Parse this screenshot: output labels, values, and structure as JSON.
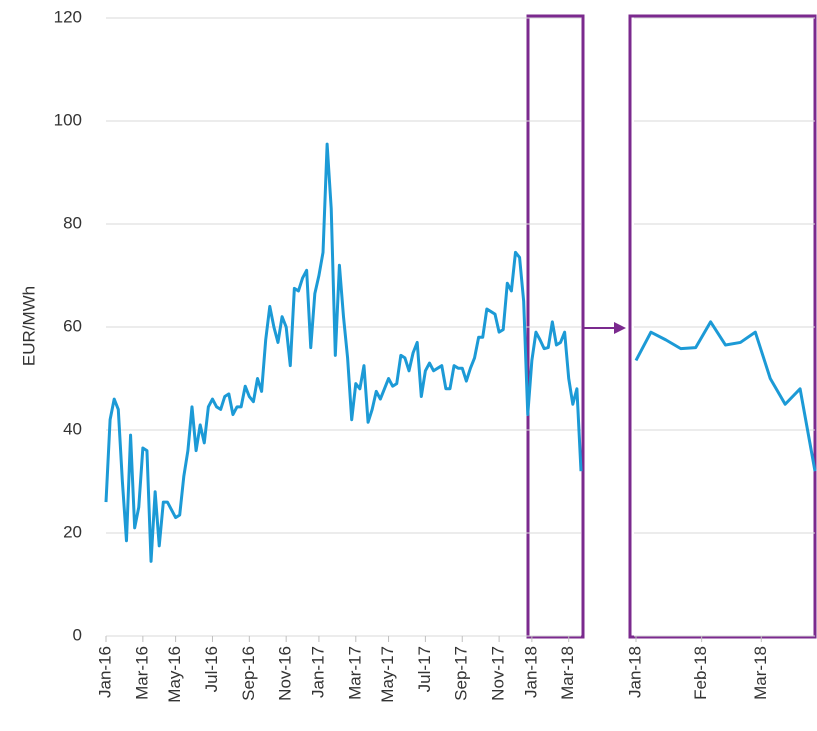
{
  "chart_data": [
    {
      "type": "line",
      "ylabel": "EUR/MWh",
      "values": [
        26,
        42,
        46,
        44,
        30,
        18.5,
        39,
        21,
        25,
        36.5,
        36,
        14.5,
        28,
        17.5,
        26,
        26,
        24.5,
        23,
        23.5,
        31,
        36,
        44.5,
        36,
        41,
        37.5,
        44.5,
        46,
        44.5,
        44,
        46.5,
        47,
        43,
        44.5,
        44.5,
        48.5,
        46.5,
        45.5,
        50,
        47.5,
        57.5,
        64,
        60,
        57,
        62,
        60,
        52.5,
        67.5,
        67,
        69.5,
        71,
        56,
        66.5,
        70,
        74.5,
        95.5,
        83,
        54.5,
        72,
        62,
        54,
        42,
        49,
        48,
        52.5,
        41.5,
        44,
        47.5,
        46,
        48,
        50,
        48.5,
        49,
        54.5,
        54,
        51.5,
        55,
        57,
        46.5,
        51.5,
        53,
        51.5,
        52,
        52.5,
        48,
        48,
        52.5,
        52,
        52,
        49.5,
        52,
        54,
        58,
        58,
        63.5,
        63,
        62.5,
        59,
        59.5,
        68.5,
        67,
        74.5,
        73.5,
        65,
        43,
        53.5,
        59,
        57.5,
        55.8,
        56,
        61,
        56.5,
        57,
        59,
        50,
        45,
        48,
        32
      ],
      "color": "#1c9ad6",
      "xlim": [
        0,
        116
      ],
      "xticks": [
        {
          "value": 0,
          "label": "Jan-16"
        },
        {
          "value": 9,
          "label": "Mar-16"
        },
        {
          "value": 17,
          "label": "May-16"
        },
        {
          "value": 26,
          "label": "Jul-16"
        },
        {
          "value": 35,
          "label": "Sep-16"
        },
        {
          "value": 44,
          "label": "Nov-16"
        },
        {
          "value": 52,
          "label": "Jan-17"
        },
        {
          "value": 61,
          "label": "Mar-17"
        },
        {
          "value": 69,
          "label": "May-17"
        },
        {
          "value": 78,
          "label": "Jul-17"
        },
        {
          "value": 87,
          "label": "Sep-17"
        },
        {
          "value": 96,
          "label": "Nov-17"
        },
        {
          "value": 104,
          "label": "Jan-18"
        },
        {
          "value": 113,
          "label": "Mar-18"
        }
      ],
      "ylim": [
        0,
        120
      ],
      "yticks": [
        0,
        20,
        40,
        60,
        80,
        100,
        120
      ],
      "grid": true
    },
    {
      "type": "line",
      "values": [
        53.5,
        59,
        57.5,
        55.8,
        56,
        61,
        56.5,
        57,
        59,
        50,
        45,
        48,
        32
      ],
      "color": "#1c9ad6",
      "xlim": [
        0,
        12
      ],
      "xticks": [
        {
          "value": 0,
          "label": "Jan-18"
        },
        {
          "value": 4.4,
          "label": "Feb-18"
        },
        {
          "value": 8.4,
          "label": "Mar-18"
        }
      ],
      "ylim": [
        0,
        120
      ],
      "yticks": [
        0,
        20,
        40,
        60,
        80,
        100,
        120
      ],
      "grid": true
    }
  ]
}
